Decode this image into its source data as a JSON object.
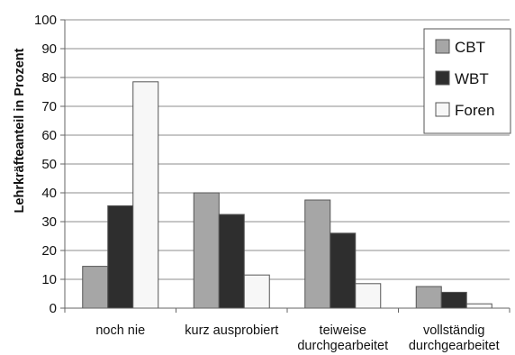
{
  "chart_data": {
    "type": "bar",
    "title": "",
    "xlabel": "",
    "ylabel": "Lehrkräfteanteil in Prozent",
    "ylim": [
      0,
      100
    ],
    "yticks": [
      0,
      10,
      20,
      30,
      40,
      50,
      60,
      70,
      80,
      90,
      100
    ],
    "grid": true,
    "legend_position": "top-right",
    "categories": [
      [
        "noch nie"
      ],
      [
        "kurz ausprobiert"
      ],
      [
        "teiweise",
        "durchgearbeitet"
      ],
      [
        "vollständig",
        "durchgearbeitet"
      ]
    ],
    "series": [
      {
        "name": "CBT",
        "color": "#a6a6a6",
        "values": [
          14.5,
          40,
          37.5,
          7.5
        ]
      },
      {
        "name": "WBT",
        "color": "#2e2e2e",
        "values": [
          35.5,
          32.5,
          26,
          5.5
        ]
      },
      {
        "name": "Foren",
        "color": "#f7f7f7",
        "values": [
          78.5,
          11.5,
          8.5,
          1.5
        ]
      }
    ]
  }
}
